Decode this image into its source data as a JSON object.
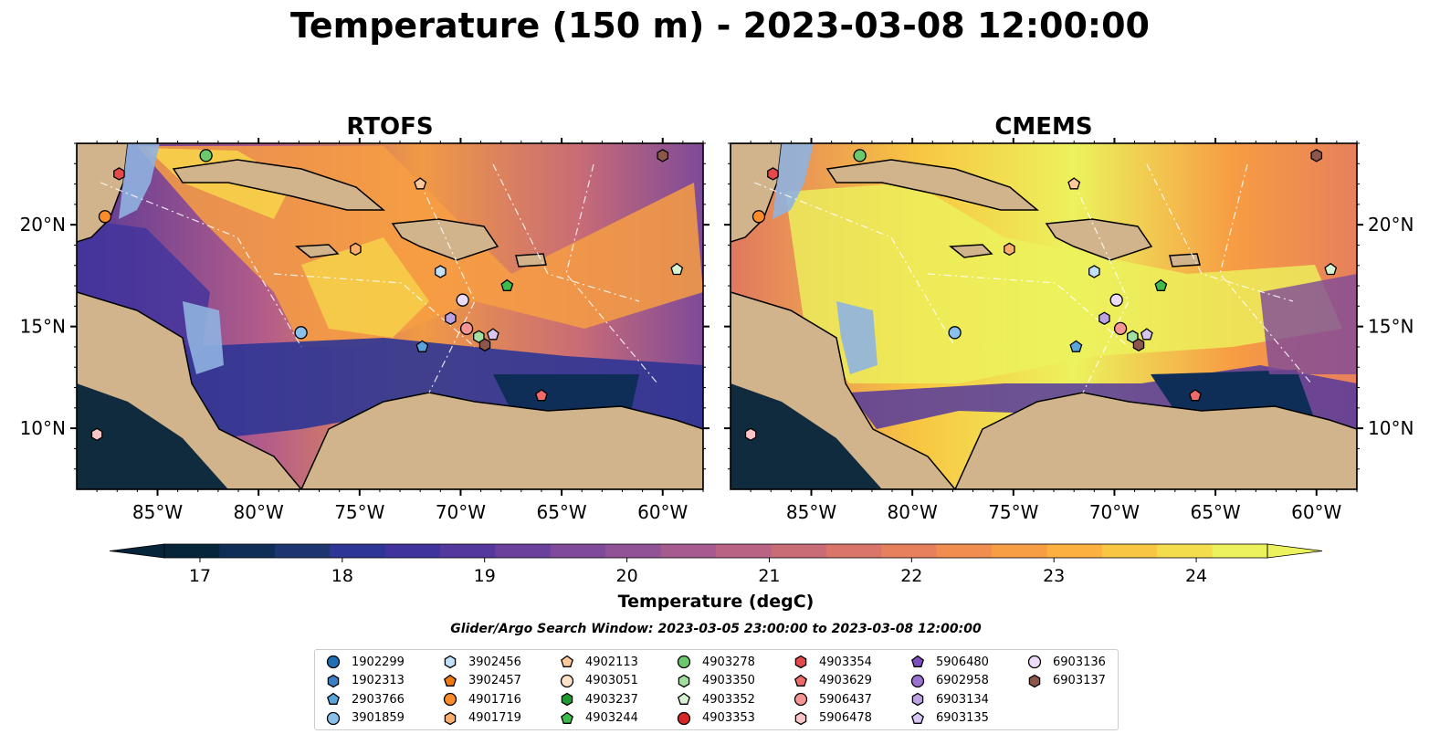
{
  "title": "Temperature (150 m) - 2023-03-08 12:00:00",
  "panels": [
    {
      "title": "RTOFS"
    },
    {
      "title": "CMEMS"
    }
  ],
  "colorbar": {
    "label": "Temperature (degC)",
    "ticks": [
      "17",
      "18",
      "19",
      "20",
      "21",
      "22",
      "23",
      "24"
    ],
    "colors": [
      "#06243a",
      "#0e2e57",
      "#1d3570",
      "#2d3595",
      "#40339e",
      "#55389e",
      "#6a409c",
      "#7e4a99",
      "#925296",
      "#a75a8f",
      "#b96283",
      "#c96c76",
      "#d97669",
      "#e7805c",
      "#f18d4f",
      "#f79d43",
      "#fbb03f",
      "#f8c642",
      "#f3dd4c",
      "#ecf25d"
    ]
  },
  "search_window": "Glider/Argo Search Window: 2023-03-05 23:00:00 to 2023-03-08 12:00:00",
  "chart_data": [
    {
      "type": "heatmap",
      "title": "RTOFS",
      "variable": "Temperature (150 m)",
      "units": "degC",
      "xticks": [
        "85°W",
        "80°W",
        "75°W",
        "70°W",
        "65°W",
        "60°W"
      ],
      "yticks": [
        "10°N",
        "15°N",
        "20°N"
      ],
      "xlim": [
        -89,
        -58
      ],
      "ylim": [
        7,
        24
      ],
      "color_range": [
        16.75,
        24.5
      ],
      "stations": [
        {
          "id": "4903278",
          "lon": -82.6,
          "lat": 23.4
        },
        {
          "id": "6903137",
          "lon": -60.0,
          "lat": 23.4
        },
        {
          "id": "4903354",
          "lon": -86.9,
          "lat": 22.5
        },
        {
          "id": "4902113",
          "lon": -72.0,
          "lat": 22.0
        },
        {
          "id": "4901716",
          "lon": -87.6,
          "lat": 20.4
        },
        {
          "id": "4901719",
          "lon": -75.2,
          "lat": 18.8
        },
        {
          "id": "3902456",
          "lon": -71.0,
          "lat": 17.7
        },
        {
          "id": "4903244",
          "lon": -67.7,
          "lat": 17.0
        },
        {
          "id": "4903352",
          "lon": -59.3,
          "lat": 17.8
        },
        {
          "id": "6903136",
          "lon": -69.9,
          "lat": 16.3
        },
        {
          "id": "6903134",
          "lon": -70.5,
          "lat": 15.4
        },
        {
          "id": "3901859",
          "lon": -77.9,
          "lat": 14.7
        },
        {
          "id": "5906437",
          "lon": -69.7,
          "lat": 14.9
        },
        {
          "id": "4903350",
          "lon": -69.1,
          "lat": 14.5
        },
        {
          "id": "6903135",
          "lon": -68.4,
          "lat": 14.6
        },
        {
          "id": "6903137",
          "lon": -68.8,
          "lat": 14.1
        },
        {
          "id": "2903766",
          "lon": -71.9,
          "lat": 14.0
        },
        {
          "id": "4903629",
          "lon": -66.0,
          "lat": 11.6
        },
        {
          "id": "5906478",
          "lon": -88.0,
          "lat": 9.7
        }
      ]
    },
    {
      "type": "heatmap",
      "title": "CMEMS",
      "variable": "Temperature (150 m)",
      "units": "degC",
      "xticks": [
        "85°W",
        "80°W",
        "75°W",
        "70°W",
        "65°W",
        "60°W"
      ],
      "yticks": [
        "10°N",
        "15°N",
        "20°N"
      ],
      "xlim": [
        -89,
        -58
      ],
      "ylim": [
        7,
        24
      ],
      "color_range": [
        16.75,
        24.5
      ],
      "stations": "same as RTOFS"
    }
  ],
  "legend": [
    {
      "id": "1902299",
      "marker": "circle",
      "color": "#1f6fb4"
    },
    {
      "id": "1902313",
      "marker": "hexagon",
      "color": "#3b7fc4"
    },
    {
      "id": "2903766",
      "marker": "pentagon",
      "color": "#5aa4dc"
    },
    {
      "id": "3901859",
      "marker": "circle",
      "color": "#8cc0ec"
    },
    {
      "id": "3902456",
      "marker": "hexagon",
      "color": "#c2e0f8"
    },
    {
      "id": "3902457",
      "marker": "pentagon",
      "color": "#f0780f"
    },
    {
      "id": "4901716",
      "marker": "circle",
      "color": "#fb8c2a"
    },
    {
      "id": "4901719",
      "marker": "hexagon",
      "color": "#fdae6b"
    },
    {
      "id": "4902113",
      "marker": "pentagon",
      "color": "#fdc89a"
    },
    {
      "id": "4903051",
      "marker": "circle",
      "color": "#fde2c8"
    },
    {
      "id": "4903237",
      "marker": "hexagon",
      "color": "#1f9a2e"
    },
    {
      "id": "4903244",
      "marker": "pentagon",
      "color": "#3dbb4b"
    },
    {
      "id": "4903278",
      "marker": "circle",
      "color": "#6cc96b"
    },
    {
      "id": "4903350",
      "marker": "hexagon",
      "color": "#a3df9f"
    },
    {
      "id": "4903352",
      "marker": "pentagon",
      "color": "#d7f3d2"
    },
    {
      "id": "4903353",
      "marker": "circle",
      "color": "#d62726"
    },
    {
      "id": "4903354",
      "marker": "hexagon",
      "color": "#e44a4a"
    },
    {
      "id": "4903629",
      "marker": "pentagon",
      "color": "#f06a6a"
    },
    {
      "id": "5906437",
      "marker": "circle",
      "color": "#f79595"
    },
    {
      "id": "5906478",
      "marker": "hexagon",
      "color": "#fcc5c5"
    },
    {
      "id": "5906480",
      "marker": "pentagon",
      "color": "#7d4fc0"
    },
    {
      "id": "6902958",
      "marker": "circle",
      "color": "#9b72d2"
    },
    {
      "id": "6903134",
      "marker": "hexagon",
      "color": "#bca2e2"
    },
    {
      "id": "6903135",
      "marker": "pentagon",
      "color": "#d6c6f0"
    },
    {
      "id": "6903136",
      "marker": "circle",
      "color": "#ecdcfa"
    },
    {
      "id": "6903137",
      "marker": "hexagon",
      "color": "#8c564b"
    }
  ]
}
